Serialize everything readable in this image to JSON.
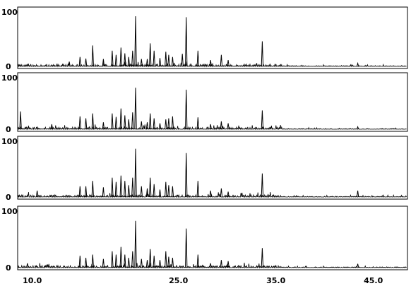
{
  "chart_data": [
    {
      "type": "line",
      "y_ticks": [
        "100",
        "0"
      ],
      "ylim": [
        0,
        100
      ],
      "xlim": [
        8.5,
        48.5
      ],
      "peaks": [
        {
          "x": 13.8,
          "y": 9
        },
        {
          "x": 14.9,
          "y": 18
        },
        {
          "x": 15.5,
          "y": 15
        },
        {
          "x": 16.2,
          "y": 40
        },
        {
          "x": 17.3,
          "y": 14
        },
        {
          "x": 18.2,
          "y": 30
        },
        {
          "x": 18.6,
          "y": 22
        },
        {
          "x": 19.1,
          "y": 36
        },
        {
          "x": 19.5,
          "y": 25
        },
        {
          "x": 19.9,
          "y": 18
        },
        {
          "x": 20.3,
          "y": 30
        },
        {
          "x": 20.6,
          "y": 96
        },
        {
          "x": 21.2,
          "y": 14
        },
        {
          "x": 21.8,
          "y": 14
        },
        {
          "x": 22.1,
          "y": 44
        },
        {
          "x": 22.5,
          "y": 30
        },
        {
          "x": 23.1,
          "y": 16
        },
        {
          "x": 23.7,
          "y": 28
        },
        {
          "x": 24.0,
          "y": 22
        },
        {
          "x": 24.4,
          "y": 18
        },
        {
          "x": 25.4,
          "y": 24
        },
        {
          "x": 25.8,
          "y": 94
        },
        {
          "x": 27.0,
          "y": 30
        },
        {
          "x": 28.3,
          "y": 12
        },
        {
          "x": 29.4,
          "y": 22
        },
        {
          "x": 30.1,
          "y": 12
        },
        {
          "x": 33.6,
          "y": 48
        },
        {
          "x": 43.4,
          "y": 6
        }
      ]
    },
    {
      "type": "line",
      "y_ticks": [
        "100",
        "0"
      ],
      "ylim": [
        0,
        100
      ],
      "xlim": [
        8.5,
        48.5
      ],
      "peaks": [
        {
          "x": 8.8,
          "y": 36
        },
        {
          "x": 12.0,
          "y": 10
        },
        {
          "x": 14.9,
          "y": 26
        },
        {
          "x": 15.5,
          "y": 22
        },
        {
          "x": 16.2,
          "y": 32
        },
        {
          "x": 17.3,
          "y": 14
        },
        {
          "x": 18.2,
          "y": 32
        },
        {
          "x": 18.6,
          "y": 25
        },
        {
          "x": 19.1,
          "y": 42
        },
        {
          "x": 19.5,
          "y": 28
        },
        {
          "x": 19.9,
          "y": 20
        },
        {
          "x": 20.3,
          "y": 34
        },
        {
          "x": 20.6,
          "y": 84
        },
        {
          "x": 21.2,
          "y": 16
        },
        {
          "x": 21.8,
          "y": 14
        },
        {
          "x": 22.1,
          "y": 32
        },
        {
          "x": 22.5,
          "y": 22
        },
        {
          "x": 23.1,
          "y": 12
        },
        {
          "x": 23.7,
          "y": 20
        },
        {
          "x": 24.0,
          "y": 22
        },
        {
          "x": 24.4,
          "y": 26
        },
        {
          "x": 25.8,
          "y": 80
        },
        {
          "x": 27.0,
          "y": 24
        },
        {
          "x": 28.3,
          "y": 10
        },
        {
          "x": 29.4,
          "y": 16
        },
        {
          "x": 30.1,
          "y": 12
        },
        {
          "x": 33.6,
          "y": 38
        },
        {
          "x": 43.4,
          "y": 5
        }
      ]
    },
    {
      "type": "line",
      "y_ticks": [
        "100",
        "0"
      ],
      "ylim": [
        0,
        100
      ],
      "xlim": [
        8.5,
        48.5
      ],
      "peaks": [
        {
          "x": 10.5,
          "y": 12
        },
        {
          "x": 14.9,
          "y": 20
        },
        {
          "x": 15.5,
          "y": 20
        },
        {
          "x": 16.2,
          "y": 30
        },
        {
          "x": 17.3,
          "y": 18
        },
        {
          "x": 18.2,
          "y": 36
        },
        {
          "x": 18.6,
          "y": 28
        },
        {
          "x": 19.1,
          "y": 40
        },
        {
          "x": 19.5,
          "y": 30
        },
        {
          "x": 19.9,
          "y": 22
        },
        {
          "x": 20.3,
          "y": 36
        },
        {
          "x": 20.6,
          "y": 90
        },
        {
          "x": 21.2,
          "y": 20
        },
        {
          "x": 21.8,
          "y": 16
        },
        {
          "x": 22.1,
          "y": 36
        },
        {
          "x": 22.5,
          "y": 24
        },
        {
          "x": 23.1,
          "y": 14
        },
        {
          "x": 23.7,
          "y": 28
        },
        {
          "x": 24.0,
          "y": 22
        },
        {
          "x": 24.4,
          "y": 20
        },
        {
          "x": 25.8,
          "y": 82
        },
        {
          "x": 27.0,
          "y": 30
        },
        {
          "x": 28.3,
          "y": 12
        },
        {
          "x": 29.4,
          "y": 16
        },
        {
          "x": 30.1,
          "y": 10
        },
        {
          "x": 33.6,
          "y": 44
        },
        {
          "x": 43.4,
          "y": 12
        }
      ]
    },
    {
      "type": "line",
      "y_ticks": [
        "100",
        "0"
      ],
      "ylim": [
        0,
        100
      ],
      "xlim": [
        8.5,
        48.5
      ],
      "x_ticks": [
        "10.0",
        "25.0",
        "35.0",
        "45.0"
      ],
      "peaks": [
        {
          "x": 9.5,
          "y": 8
        },
        {
          "x": 14.9,
          "y": 22
        },
        {
          "x": 15.5,
          "y": 18
        },
        {
          "x": 16.2,
          "y": 24
        },
        {
          "x": 17.3,
          "y": 16
        },
        {
          "x": 18.2,
          "y": 30
        },
        {
          "x": 18.6,
          "y": 24
        },
        {
          "x": 19.1,
          "y": 38
        },
        {
          "x": 19.5,
          "y": 24
        },
        {
          "x": 19.9,
          "y": 18
        },
        {
          "x": 20.3,
          "y": 30
        },
        {
          "x": 20.6,
          "y": 86
        },
        {
          "x": 21.2,
          "y": 16
        },
        {
          "x": 21.8,
          "y": 14
        },
        {
          "x": 22.1,
          "y": 34
        },
        {
          "x": 22.5,
          "y": 22
        },
        {
          "x": 23.1,
          "y": 14
        },
        {
          "x": 23.7,
          "y": 30
        },
        {
          "x": 24.0,
          "y": 20
        },
        {
          "x": 24.4,
          "y": 18
        },
        {
          "x": 25.8,
          "y": 72
        },
        {
          "x": 27.0,
          "y": 24
        },
        {
          "x": 28.3,
          "y": 8
        },
        {
          "x": 29.4,
          "y": 14
        },
        {
          "x": 30.1,
          "y": 12
        },
        {
          "x": 33.6,
          "y": 36
        },
        {
          "x": 43.4,
          "y": 7
        }
      ]
    }
  ]
}
